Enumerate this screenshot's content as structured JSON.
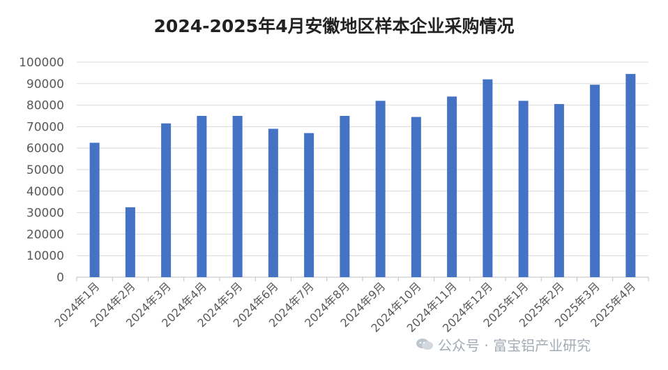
{
  "chart_data": {
    "type": "bar",
    "title": "2024-2025年4月安徽地区样本企业采购情况",
    "categories": [
      "2024年1月",
      "2024年2月",
      "2024年3月",
      "2024年4月",
      "2024年5月",
      "2024年6月",
      "2024年7月",
      "2024年8月",
      "2024年9月",
      "2024年10月",
      "2024年11月",
      "2024年12月",
      "2025年1月",
      "2025年2月",
      "2025年3月",
      "2025年4月"
    ],
    "values": [
      62500,
      32500,
      71500,
      75000,
      75000,
      69000,
      67000,
      75000,
      82000,
      74500,
      84000,
      92000,
      82000,
      80500,
      89500,
      94500
    ],
    "ylim": [
      0,
      100000
    ],
    "yticks": [
      0,
      10000,
      20000,
      30000,
      40000,
      50000,
      60000,
      70000,
      80000,
      90000,
      100000
    ],
    "grid": true,
    "bar_color": "#4472c4"
  },
  "watermark": {
    "text": "公众号 · 富宝铝产业研究",
    "icon": "wechat-icon"
  }
}
